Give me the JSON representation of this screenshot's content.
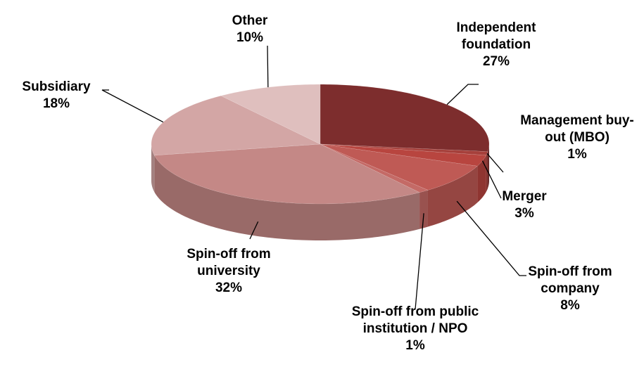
{
  "chart_data": {
    "type": "pie",
    "categories": [
      "Independent foundation",
      "Management buy-out (MBO)",
      "Merger",
      "Spin-off from company",
      "Spin-off from public institution / NPO",
      "Spin-off from university",
      "Subsidiary",
      "Other"
    ],
    "values": [
      27,
      1,
      3,
      8,
      1,
      32,
      18,
      10
    ],
    "value_labels": [
      "27%",
      "1%",
      "3%",
      "8%",
      "1%",
      "32%",
      "18%",
      "10%"
    ],
    "colors": [
      "#7d2d2d",
      "#a6403b",
      "#b8453f",
      "#bf5a55",
      "#c46a66",
      "#c48886",
      "#d3a6a5",
      "#dfbfbe"
    ]
  }
}
